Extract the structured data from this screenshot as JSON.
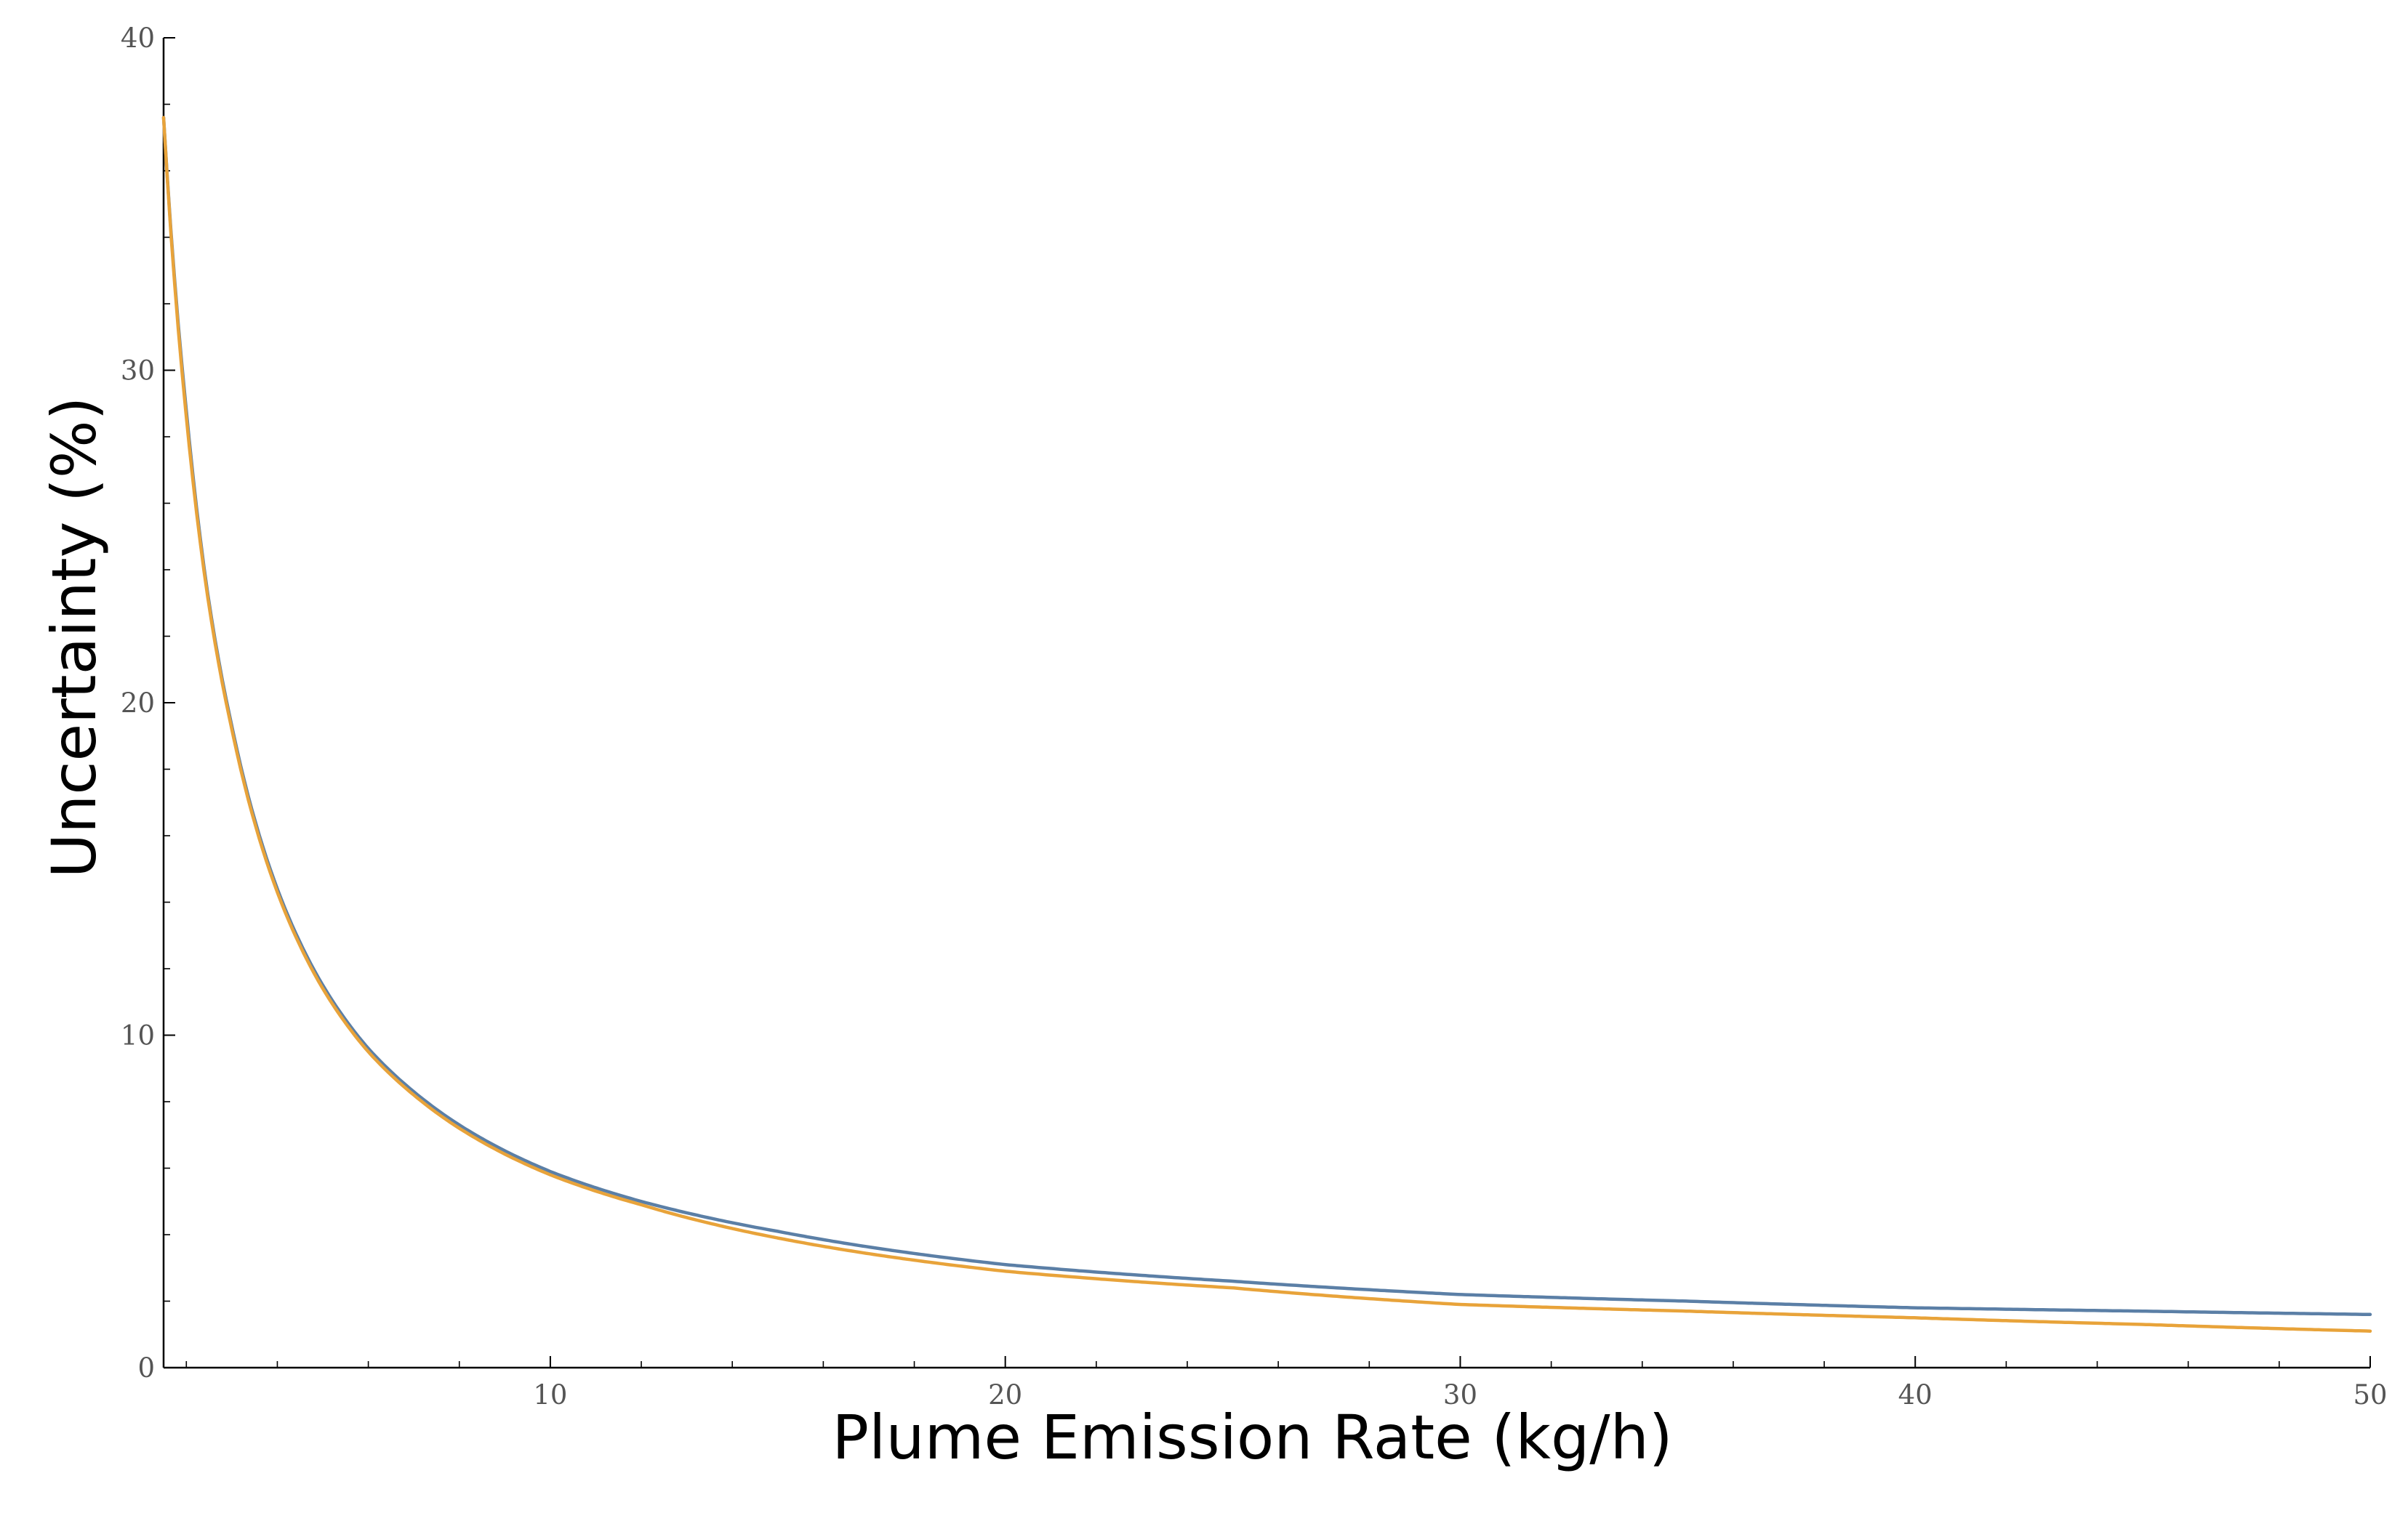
{
  "chart_data": {
    "type": "line",
    "title": "",
    "xlabel": "Plume Emission Rate (kg/h)",
    "ylabel": "Uncertainty (%)",
    "xlim": [
      1.5,
      50
    ],
    "ylim": [
      0,
      40
    ],
    "x_ticks": [
      10,
      20,
      30,
      40,
      50
    ],
    "y_ticks": [
      0,
      10,
      20,
      30,
      40
    ],
    "x_tick_labels": [
      "10",
      "20",
      "30",
      "40",
      "50"
    ],
    "y_tick_labels": [
      "0",
      "10",
      "20",
      "30",
      "40"
    ],
    "grid": false,
    "legend": "none",
    "x": [
      1.5,
      2,
      2.5,
      3,
      4,
      5,
      6,
      7,
      8,
      10,
      12,
      15,
      20,
      25,
      30,
      35,
      40,
      45,
      50
    ],
    "series": [
      {
        "color": "#5b7fa6",
        "values": [
          37.6,
          28.8,
          23.0,
          19.3,
          14.4,
          11.5,
          9.6,
          8.3,
          7.3,
          5.9,
          5.0,
          4.1,
          3.1,
          2.6,
          2.2,
          2.0,
          1.8,
          1.7,
          1.6
        ]
      },
      {
        "color": "#e8a33a",
        "values": [
          37.6,
          28.6,
          22.9,
          19.2,
          14.3,
          11.4,
          9.5,
          8.2,
          7.2,
          5.8,
          4.9,
          3.9,
          2.9,
          2.4,
          1.9,
          1.7,
          1.5,
          1.3,
          1.1
        ]
      }
    ]
  }
}
